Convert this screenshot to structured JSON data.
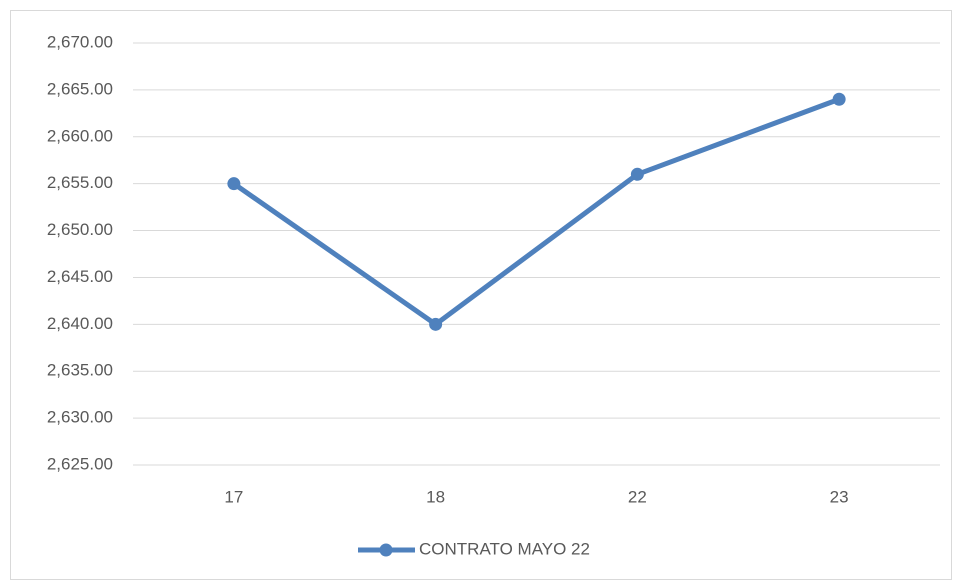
{
  "chart_data": {
    "type": "line",
    "categories": [
      "17",
      "18",
      "22",
      "23"
    ],
    "series": [
      {
        "name": "CONTRATO MAYO 22",
        "color": "#4f81bd",
        "values": [
          2655,
          2640,
          2656,
          2664
        ]
      }
    ],
    "ylim": [
      2625,
      2670
    ],
    "yticks": [
      {
        "value": 2625,
        "label": "2,625.00"
      },
      {
        "value": 2630,
        "label": "2,630.00"
      },
      {
        "value": 2635,
        "label": "2,635.00"
      },
      {
        "value": 2640,
        "label": "2,640.00"
      },
      {
        "value": 2645,
        "label": "2,645.00"
      },
      {
        "value": 2650,
        "label": "2,650.00"
      },
      {
        "value": 2655,
        "label": "2,655.00"
      },
      {
        "value": 2660,
        "label": "2,660.00"
      },
      {
        "value": 2665,
        "label": "2,665.00"
      },
      {
        "value": 2670,
        "label": "2,670.00"
      }
    ],
    "grid": true,
    "legend": "bottom"
  }
}
